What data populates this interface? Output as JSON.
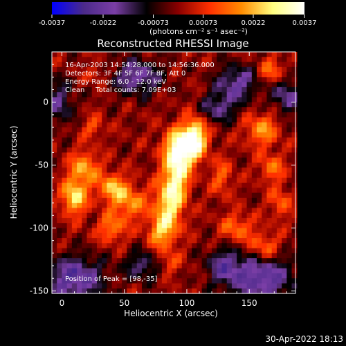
{
  "chart_data": {
    "type": "heatmap",
    "title": "Reconstructed RHESSI Image",
    "xlabel": "Heliocentric X (arcsec)",
    "ylabel": "Heliocentric Y (arcsec)",
    "xlim": [
      -8,
      187
    ],
    "ylim": [
      -152,
      40
    ],
    "x_ticks": [
      0,
      50,
      100,
      150
    ],
    "y_ticks": [
      0,
      -50,
      -100,
      -150
    ],
    "colorbar": {
      "range": [
        -0.0037,
        0.0037
      ],
      "tick_values": [
        -0.0037,
        -0.0022,
        -0.00073,
        0.00073,
        0.0022,
        0.0037
      ],
      "tick_labels": [
        "-0.0037",
        "-0.0022",
        "-0.00073",
        "0.00073",
        "0.0022",
        "0.0037"
      ],
      "unit_label": "(photons cm⁻² s⁻¹ asec⁻²)",
      "colors": [
        "#0000ff",
        "#4b2a8a",
        "#7a3ea6",
        "#000000",
        "#8a0000",
        "#ff3000",
        "#ff8c00",
        "#ffff80",
        "#ffffff"
      ]
    },
    "annotations": [
      "16-Apr-2003 14:54:28.000 to 14:56:36.000",
      "Detectors: 3F 4F 5F 6F 7F 8F, Att 0",
      "Energy Range: 6.0 - 12.0 keV",
      "Clean     Total counts: 7.09E+03"
    ],
    "peak_label": "Position of Peak = [98,-35]",
    "peak": {
      "x": 98,
      "y": -35
    },
    "emission_regions": [
      {
        "x": 98,
        "y": -35,
        "amp": 1.0,
        "sx": 10,
        "sy": 10
      },
      {
        "x": 92,
        "y": -55,
        "amp": 0.75,
        "sx": 7,
        "sy": 14
      },
      {
        "x": 86,
        "y": -80,
        "amp": 0.7,
        "sx": 8,
        "sy": 14
      },
      {
        "x": 80,
        "y": -103,
        "amp": 0.55,
        "sx": 8,
        "sy": 10
      },
      {
        "x": 107,
        "y": -25,
        "amp": 0.65,
        "sx": 6,
        "sy": 10
      },
      {
        "x": 10,
        "y": -75,
        "amp": 0.75,
        "sx": 7,
        "sy": 10
      },
      {
        "x": 18,
        "y": -52,
        "amp": 0.55,
        "sx": 8,
        "sy": 9
      },
      {
        "x": 40,
        "y": -68,
        "amp": 0.6,
        "sx": 8,
        "sy": 8
      },
      {
        "x": 55,
        "y": -80,
        "amp": 0.5,
        "sx": 9,
        "sy": 9
      },
      {
        "x": 40,
        "y": -100,
        "amp": 0.45,
        "sx": 8,
        "sy": 8
      },
      {
        "x": 25,
        "y": -20,
        "amp": 0.3,
        "sx": 6,
        "sy": 6
      },
      {
        "x": 128,
        "y": -60,
        "amp": 0.35,
        "sx": 6,
        "sy": 10
      },
      {
        "x": 160,
        "y": -22,
        "amp": 0.5,
        "sx": 9,
        "sy": 9
      },
      {
        "x": 168,
        "y": -52,
        "amp": 0.4,
        "sx": 7,
        "sy": 8
      },
      {
        "x": 140,
        "y": -100,
        "amp": 0.4,
        "sx": 9,
        "sy": 8
      },
      {
        "x": 162,
        "y": -115,
        "amp": 0.4,
        "sx": 8,
        "sy": 8
      },
      {
        "x": 175,
        "y": -80,
        "amp": 0.35,
        "sx": 6,
        "sy": 9
      },
      {
        "x": 168,
        "y": 25,
        "amp": 0.4,
        "sx": 7,
        "sy": 7
      },
      {
        "x": 28,
        "y": 22,
        "amp": 0.25,
        "sx": 6,
        "sy": 5
      },
      {
        "x": 85,
        "y": -128,
        "amp": 0.3,
        "sx": 7,
        "sy": 6
      }
    ],
    "negative_regions": [
      {
        "x": 10,
        "y": -140,
        "amp": 0.7,
        "sx": 16,
        "sy": 12
      },
      {
        "x": 160,
        "y": -140,
        "amp": 0.7,
        "sx": 18,
        "sy": 12
      },
      {
        "x": 60,
        "y": 20,
        "amp": 0.55,
        "sx": 14,
        "sy": 10
      },
      {
        "x": 140,
        "y": 15,
        "amp": 0.55,
        "sx": 12,
        "sy": 10
      },
      {
        "x": 130,
        "y": -130,
        "amp": 0.5,
        "sx": 10,
        "sy": 10
      },
      {
        "x": 65,
        "y": -130,
        "amp": 0.45,
        "sx": 10,
        "sy": 8
      },
      {
        "x": 180,
        "y": 5,
        "amp": 0.5,
        "sx": 8,
        "sy": 10
      },
      {
        "x": -2,
        "y": 0,
        "amp": 0.45,
        "sx": 8,
        "sy": 12
      },
      {
        "x": 125,
        "y": -5,
        "amp": 0.45,
        "sx": 10,
        "sy": 8
      }
    ]
  },
  "footer": {
    "timestamp": "30-Apr-2022 18:13"
  }
}
